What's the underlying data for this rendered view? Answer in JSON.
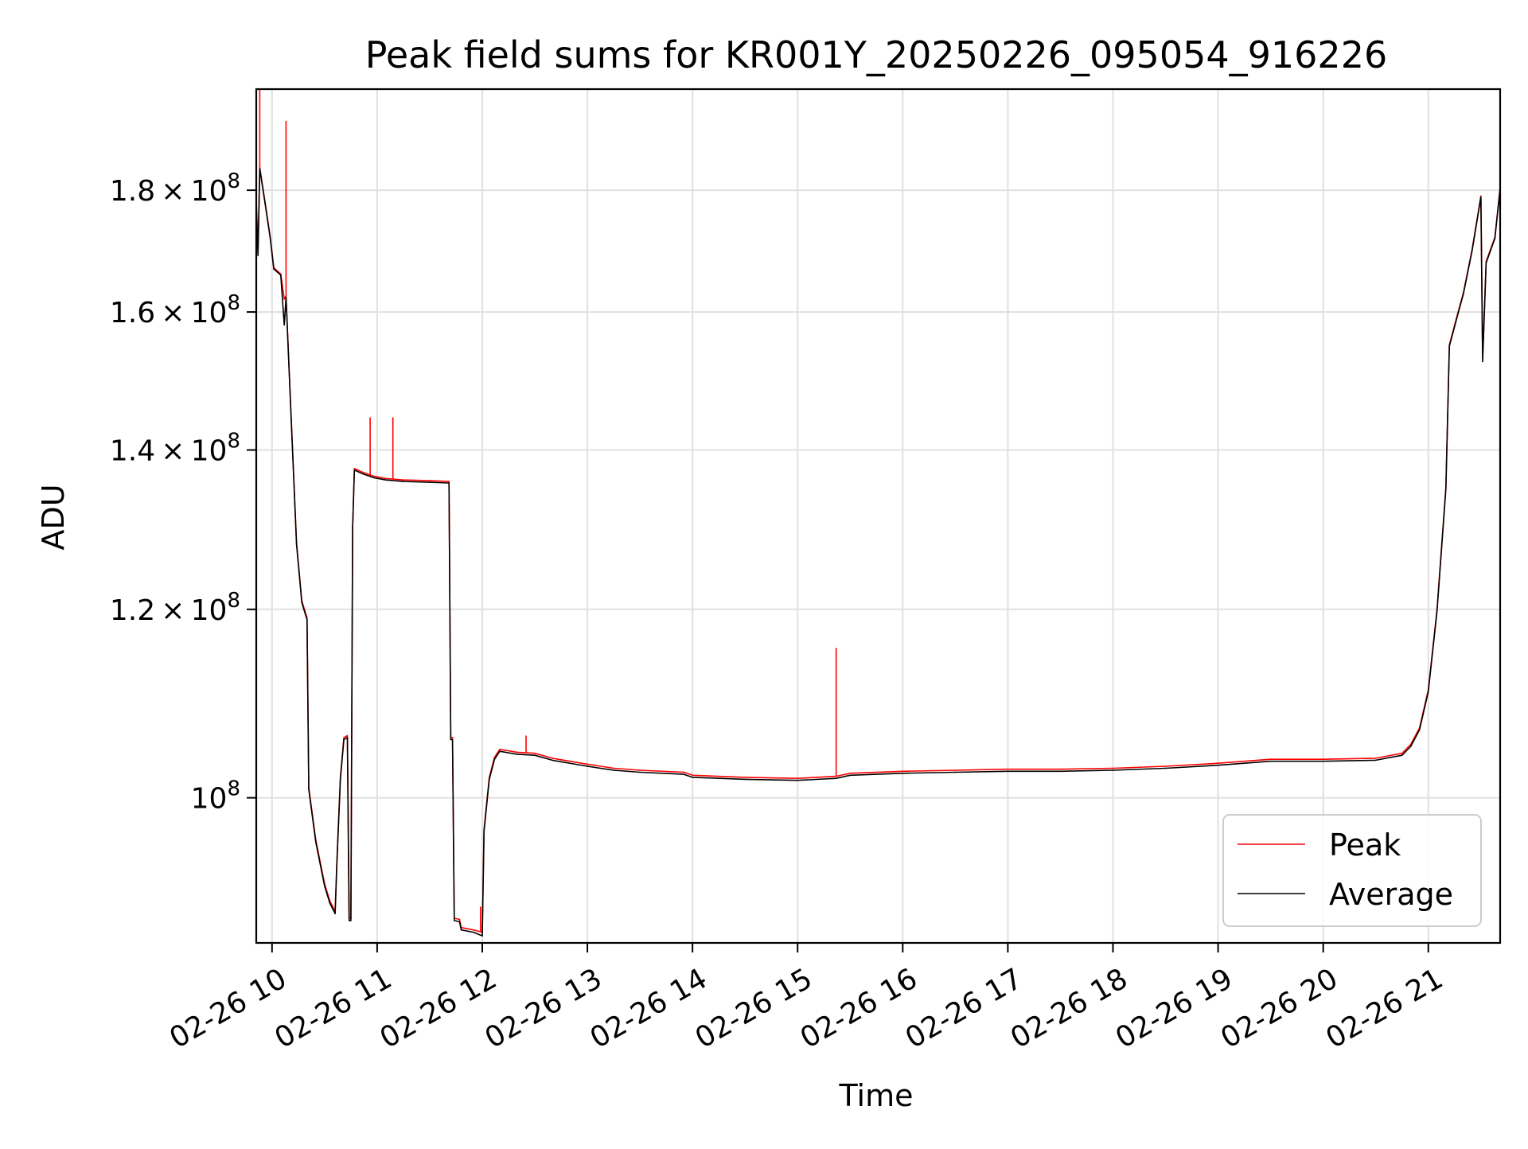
{
  "chart_data": {
    "type": "line",
    "title": "Peak field sums for KR001Y_20250226_095054_916226",
    "xlabel": "Time",
    "ylabel": "ADU",
    "x_range": [
      "2025-02-26 09:51",
      "2025-02-26 21:41"
    ],
    "y_range": [
      86900000,
      198500000
    ],
    "y_scale": "log",
    "grid": true,
    "legend_position": "lower-right",
    "x_ticks": [
      {
        "value": "2025-02-26 10:00",
        "label": "02-26 10"
      },
      {
        "value": "2025-02-26 11:00",
        "label": "02-26 11"
      },
      {
        "value": "2025-02-26 12:00",
        "label": "02-26 12"
      },
      {
        "value": "2025-02-26 13:00",
        "label": "02-26 13"
      },
      {
        "value": "2025-02-26 14:00",
        "label": "02-26 14"
      },
      {
        "value": "2025-02-26 15:00",
        "label": "02-26 15"
      },
      {
        "value": "2025-02-26 16:00",
        "label": "02-26 16"
      },
      {
        "value": "2025-02-26 17:00",
        "label": "02-26 17"
      },
      {
        "value": "2025-02-26 18:00",
        "label": "02-26 18"
      },
      {
        "value": "2025-02-26 19:00",
        "label": "02-26 19"
      },
      {
        "value": "2025-02-26 20:00",
        "label": "02-26 20"
      },
      {
        "value": "2025-02-26 21:00",
        "label": "02-26 21"
      }
    ],
    "y_ticks": [
      {
        "value": 100000000,
        "mantissa": "",
        "exponent": "8"
      },
      {
        "value": 120000000,
        "mantissa": "1.2",
        "exponent": "8"
      },
      {
        "value": 140000000,
        "mantissa": "1.4",
        "exponent": "8"
      },
      {
        "value": 160000000,
        "mantissa": "1.6",
        "exponent": "8"
      },
      {
        "value": 180000000,
        "mantissa": "1.8",
        "exponent": "8"
      }
    ],
    "series": [
      {
        "name": "Peak",
        "color": "#ff0000",
        "points": [
          [
            "2025-02-26 09:51",
            178000000
          ],
          [
            "2025-02-26 09:52",
            170000000
          ],
          [
            "2025-02-26 09:53",
            184000000
          ],
          [
            "2025-02-26 09:56",
            178000000
          ],
          [
            "2025-02-26 09:59",
            172000000
          ],
          [
            "2025-02-26 10:01",
            167000000
          ],
          [
            "2025-02-26 10:05",
            166000000
          ],
          [
            "2025-02-26 10:07",
            162000000
          ],
          [
            "2025-02-26 10:08",
            162500000
          ],
          [
            "2025-02-26 10:10",
            150000000
          ],
          [
            "2025-02-26 10:14",
            128000000
          ],
          [
            "2025-02-26 10:17",
            121000000
          ],
          [
            "2025-02-26 10:20",
            119000000
          ],
          [
            "2025-02-26 10:21",
            101000000
          ],
          [
            "2025-02-26 10:25",
            96000000
          ],
          [
            "2025-02-26 10:30",
            92000000
          ],
          [
            "2025-02-26 10:33",
            90500000
          ],
          [
            "2025-02-26 10:36",
            89600000
          ],
          [
            "2025-02-26 10:37",
            94000000
          ],
          [
            "2025-02-26 10:39",
            102000000
          ],
          [
            "2025-02-26 10:41",
            106000000
          ],
          [
            "2025-02-26 10:43",
            106200000
          ],
          [
            "2025-02-26 10:44",
            89000000
          ],
          [
            "2025-02-26 10:45",
            89000000
          ],
          [
            "2025-02-26 10:46",
            130000000
          ],
          [
            "2025-02-26 10:47",
            137500000
          ],
          [
            "2025-02-26 10:52",
            137000000
          ],
          [
            "2025-02-26 10:58",
            136500000
          ],
          [
            "2025-02-26 11:05",
            136200000
          ],
          [
            "2025-02-26 11:15",
            136000000
          ],
          [
            "2025-02-26 11:30",
            135900000
          ],
          [
            "2025-02-26 11:41",
            135800000
          ],
          [
            "2025-02-26 11:42",
            106000000
          ],
          [
            "2025-02-26 11:43",
            106000000
          ],
          [
            "2025-02-26 11:44",
            89000000
          ],
          [
            "2025-02-26 11:47",
            88900000
          ],
          [
            "2025-02-26 11:48",
            88200000
          ],
          [
            "2025-02-26 11:55",
            88000000
          ],
          [
            "2025-02-26 12:00",
            87800000
          ],
          [
            "2025-02-26 12:01",
            97000000
          ],
          [
            "2025-02-26 12:04",
            102000000
          ],
          [
            "2025-02-26 12:07",
            104000000
          ],
          [
            "2025-02-26 12:10",
            104800000
          ],
          [
            "2025-02-26 12:20",
            104500000
          ],
          [
            "2025-02-26 12:30",
            104400000
          ],
          [
            "2025-02-26 12:40",
            103900000
          ],
          [
            "2025-02-26 13:00",
            103300000
          ],
          [
            "2025-02-26 13:15",
            102900000
          ],
          [
            "2025-02-26 13:30",
            102700000
          ],
          [
            "2025-02-26 13:55",
            102500000
          ],
          [
            "2025-02-26 14:00",
            102200000
          ],
          [
            "2025-02-26 14:30",
            102000000
          ],
          [
            "2025-02-26 15:00",
            101900000
          ],
          [
            "2025-02-26 15:22",
            102100000
          ],
          [
            "2025-02-26 15:30",
            102400000
          ],
          [
            "2025-02-26 16:00",
            102600000
          ],
          [
            "2025-02-26 16:30",
            102700000
          ],
          [
            "2025-02-26 17:00",
            102800000
          ],
          [
            "2025-02-26 17:30",
            102800000
          ],
          [
            "2025-02-26 18:00",
            102900000
          ],
          [
            "2025-02-26 18:30",
            103100000
          ],
          [
            "2025-02-26 19:00",
            103400000
          ],
          [
            "2025-02-26 19:30",
            103800000
          ],
          [
            "2025-02-26 20:00",
            103800000
          ],
          [
            "2025-02-26 20:30",
            103900000
          ],
          [
            "2025-02-26 20:45",
            104400000
          ],
          [
            "2025-02-26 20:50",
            105300000
          ],
          [
            "2025-02-26 20:55",
            107000000
          ],
          [
            "2025-02-26 21:00",
            111000000
          ],
          [
            "2025-02-26 21:05",
            120000000
          ],
          [
            "2025-02-26 21:10",
            135000000
          ],
          [
            "2025-02-26 21:12",
            155000000
          ],
          [
            "2025-02-26 21:17",
            160000000
          ],
          [
            "2025-02-26 21:20",
            163000000
          ],
          [
            "2025-02-26 21:25",
            170000000
          ],
          [
            "2025-02-26 21:30",
            179000000
          ],
          [
            "2025-02-26 21:31",
            153000000
          ],
          [
            "2025-02-26 21:33",
            168000000
          ],
          [
            "2025-02-26 21:38",
            172000000
          ],
          [
            "2025-02-26 21:41",
            180500000
          ]
        ],
        "spikes": [
          [
            "2025-02-26 09:53",
            198500000
          ],
          [
            "2025-02-26 10:08",
            192500000
          ],
          [
            "2025-02-26 10:56",
            144500000
          ],
          [
            "2025-02-26 11:09",
            144500000
          ],
          [
            "2025-02-26 11:59",
            90000000
          ],
          [
            "2025-02-26 12:25",
            106200000
          ],
          [
            "2025-02-26 15:22",
            115600000
          ]
        ]
      },
      {
        "name": "Average",
        "color": "#000000",
        "points": [
          [
            "2025-02-26 09:51",
            177800000
          ],
          [
            "2025-02-26 09:52",
            169000000
          ],
          [
            "2025-02-26 09:53",
            183800000
          ],
          [
            "2025-02-26 09:56",
            177800000
          ],
          [
            "2025-02-26 09:59",
            171800000
          ],
          [
            "2025-02-26 10:01",
            166800000
          ],
          [
            "2025-02-26 10:05",
            165800000
          ],
          [
            "2025-02-26 10:07",
            158000000
          ],
          [
            "2025-02-26 10:08",
            162300000
          ],
          [
            "2025-02-26 10:10",
            149800000
          ],
          [
            "2025-02-26 10:14",
            127800000
          ],
          [
            "2025-02-26 10:17",
            120800000
          ],
          [
            "2025-02-26 10:20",
            118800000
          ],
          [
            "2025-02-26 10:21",
            100800000
          ],
          [
            "2025-02-26 10:25",
            95800000
          ],
          [
            "2025-02-26 10:30",
            91800000
          ],
          [
            "2025-02-26 10:33",
            90300000
          ],
          [
            "2025-02-26 10:36",
            89400000
          ],
          [
            "2025-02-26 10:37",
            93800000
          ],
          [
            "2025-02-26 10:39",
            101800000
          ],
          [
            "2025-02-26 10:41",
            105800000
          ],
          [
            "2025-02-26 10:43",
            106000000
          ],
          [
            "2025-02-26 10:44",
            88800000
          ],
          [
            "2025-02-26 10:45",
            88800000
          ],
          [
            "2025-02-26 10:46",
            129800000
          ],
          [
            "2025-02-26 10:47",
            137300000
          ],
          [
            "2025-02-26 10:52",
            136800000
          ],
          [
            "2025-02-26 10:58",
            136300000
          ],
          [
            "2025-02-26 11:05",
            136000000
          ],
          [
            "2025-02-26 11:15",
            135800000
          ],
          [
            "2025-02-26 11:30",
            135700000
          ],
          [
            "2025-02-26 11:41",
            135600000
          ],
          [
            "2025-02-26 11:42",
            105800000
          ],
          [
            "2025-02-26 11:43",
            105800000
          ],
          [
            "2025-02-26 11:44",
            88800000
          ],
          [
            "2025-02-26 11:47",
            88700000
          ],
          [
            "2025-02-26 11:48",
            88000000
          ],
          [
            "2025-02-26 11:55",
            87800000
          ],
          [
            "2025-02-26 12:00",
            87500000
          ],
          [
            "2025-02-26 12:01",
            96800000
          ],
          [
            "2025-02-26 12:04",
            101800000
          ],
          [
            "2025-02-26 12:07",
            103800000
          ],
          [
            "2025-02-26 12:10",
            104600000
          ],
          [
            "2025-02-26 12:20",
            104300000
          ],
          [
            "2025-02-26 12:30",
            104200000
          ],
          [
            "2025-02-26 12:40",
            103700000
          ],
          [
            "2025-02-26 13:00",
            103100000
          ],
          [
            "2025-02-26 13:15",
            102700000
          ],
          [
            "2025-02-26 13:30",
            102500000
          ],
          [
            "2025-02-26 13:55",
            102300000
          ],
          [
            "2025-02-26 14:00",
            102000000
          ],
          [
            "2025-02-26 14:30",
            101800000
          ],
          [
            "2025-02-26 15:00",
            101700000
          ],
          [
            "2025-02-26 15:22",
            101900000
          ],
          [
            "2025-02-26 15:30",
            102200000
          ],
          [
            "2025-02-26 16:00",
            102400000
          ],
          [
            "2025-02-26 16:30",
            102500000
          ],
          [
            "2025-02-26 17:00",
            102600000
          ],
          [
            "2025-02-26 17:30",
            102600000
          ],
          [
            "2025-02-26 18:00",
            102700000
          ],
          [
            "2025-02-26 18:30",
            102900000
          ],
          [
            "2025-02-26 19:00",
            103200000
          ],
          [
            "2025-02-26 19:30",
            103600000
          ],
          [
            "2025-02-26 20:00",
            103600000
          ],
          [
            "2025-02-26 20:30",
            103700000
          ],
          [
            "2025-02-26 20:45",
            104200000
          ],
          [
            "2025-02-26 20:50",
            105100000
          ],
          [
            "2025-02-26 20:55",
            106800000
          ],
          [
            "2025-02-26 21:00",
            110800000
          ],
          [
            "2025-02-26 21:05",
            119800000
          ],
          [
            "2025-02-26 21:10",
            134800000
          ],
          [
            "2025-02-26 21:12",
            154800000
          ],
          [
            "2025-02-26 21:17",
            159800000
          ],
          [
            "2025-02-26 21:20",
            162800000
          ],
          [
            "2025-02-26 21:25",
            169800000
          ],
          [
            "2025-02-26 21:30",
            178800000
          ],
          [
            "2025-02-26 21:31",
            152500000
          ],
          [
            "2025-02-26 21:33",
            167800000
          ],
          [
            "2025-02-26 21:38",
            171800000
          ],
          [
            "2025-02-26 21:41",
            180300000
          ]
        ]
      }
    ]
  }
}
